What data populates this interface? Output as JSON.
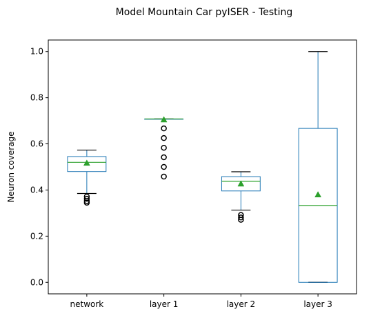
{
  "chart_data": {
    "type": "box",
    "title": "Model Mountain Car pyISER - Testing",
    "xlabel": "",
    "ylabel": "Neuron coverage",
    "ylim": [
      -0.05,
      1.05
    ],
    "yticks": [
      0.0,
      0.2,
      0.4,
      0.6,
      0.8,
      1.0
    ],
    "ytick_labels": [
      "0.0",
      "0.2",
      "0.4",
      "0.6",
      "0.8",
      "1.0"
    ],
    "grid": false,
    "categories": [
      "network",
      "layer 1",
      "layer 2",
      "layer 3"
    ],
    "boxes": [
      {
        "name": "network",
        "whisker_low": 0.385,
        "q1": 0.48,
        "median": 0.52,
        "q3": 0.545,
        "whisker_high": 0.573,
        "mean": 0.517,
        "outliers": [
          0.372,
          0.362,
          0.352,
          0.345
        ]
      },
      {
        "name": "layer 1",
        "whisker_low": 0.708,
        "q1": 0.708,
        "median": 0.708,
        "q3": 0.708,
        "whisker_high": 0.708,
        "mean": 0.705,
        "outliers": [
          0.667,
          0.625,
          0.583,
          0.542,
          0.5,
          0.458
        ]
      },
      {
        "name": "layer 2",
        "whisker_low": 0.313,
        "q1": 0.396,
        "median": 0.438,
        "q3": 0.458,
        "whisker_high": 0.479,
        "mean": 0.427,
        "outliers": [
          0.292,
          0.281,
          0.271
        ]
      },
      {
        "name": "layer 3",
        "whisker_low": 0.0,
        "q1": 0.0,
        "median": 0.333,
        "q3": 0.667,
        "whisker_high": 1.0,
        "mean": 0.38,
        "outliers": []
      }
    ],
    "colors": {
      "box": "#1f77b4",
      "median": "#2ca02c",
      "mean": "#2ca02c",
      "whisker_cap": "#000000",
      "outlier": "#000000"
    }
  }
}
